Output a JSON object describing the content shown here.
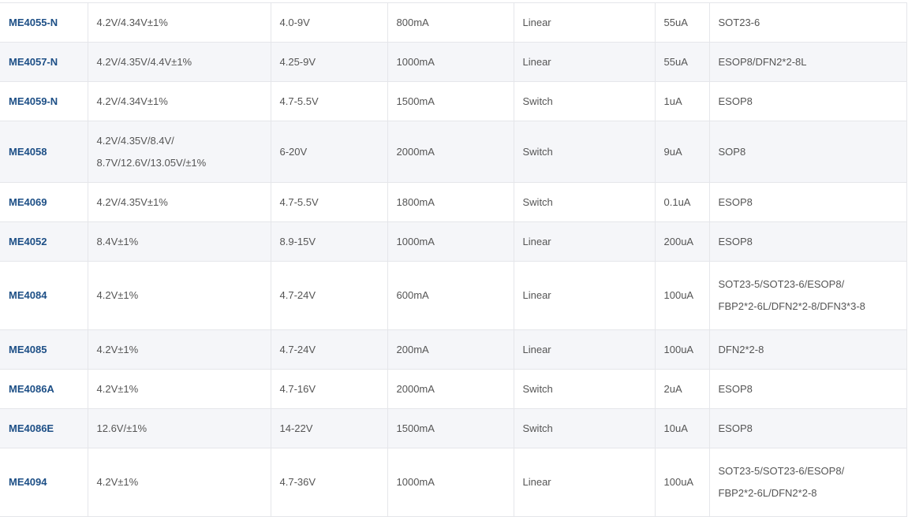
{
  "accent_color": "#1d4f86",
  "rows": [
    {
      "model": "ME4055-N",
      "voltage": [
        "4.2V/4.34V±1%"
      ],
      "input": "4.0-9V",
      "current": "800mA",
      "type": "Linear",
      "quiescent": "55uA",
      "package": [
        "SOT23-6"
      ]
    },
    {
      "model": "ME4057-N",
      "voltage": [
        "4.2V/4.35V/4.4V±1%"
      ],
      "input": "4.25-9V",
      "current": "1000mA",
      "type": "Linear",
      "quiescent": "55uA",
      "package": [
        "ESOP8/DFN2*2-8L"
      ]
    },
    {
      "model": "ME4059-N",
      "voltage": [
        "4.2V/4.34V±1%"
      ],
      "input": "4.7-5.5V",
      "current": "1500mA",
      "type": "Switch",
      "quiescent": "1uA",
      "package": [
        "ESOP8"
      ]
    },
    {
      "model": "ME4058",
      "voltage": [
        "4.2V/4.35V/8.4V/",
        "8.7V/12.6V/13.05V/±1%"
      ],
      "input": "6-20V",
      "current": "2000mA",
      "type": "Switch",
      "quiescent": "9uA",
      "package": [
        "SOP8"
      ]
    },
    {
      "model": "ME4069",
      "voltage": [
        "4.2V/4.35V±1%"
      ],
      "input": "4.7-5.5V",
      "current": "1800mA",
      "type": "Switch",
      "quiescent": "0.1uA",
      "package": [
        "ESOP8"
      ]
    },
    {
      "model": "ME4052",
      "voltage": [
        "8.4V±1%"
      ],
      "input": "8.9-15V",
      "current": "1000mA",
      "type": "Linear",
      "quiescent": "200uA",
      "package": [
        "ESOP8"
      ]
    },
    {
      "model": "ME4084",
      "voltage": [
        "4.2V±1%"
      ],
      "input": "4.7-24V",
      "current": "600mA",
      "type": "Linear",
      "quiescent": "100uA",
      "package": [
        "SOT23-5/SOT23-6/ESOP8/",
        "FBP2*2-6L/DFN2*2-8/DFN3*3-8"
      ]
    },
    {
      "model": "ME4085",
      "voltage": [
        "4.2V±1%"
      ],
      "input": "4.7-24V",
      "current": "200mA",
      "type": "Linear",
      "quiescent": "100uA",
      "package": [
        "DFN2*2-8"
      ]
    },
    {
      "model": "ME4086A",
      "voltage": [
        "4.2V±1%"
      ],
      "input": "4.7-16V",
      "current": "2000mA",
      "type": "Switch",
      "quiescent": "2uA",
      "package": [
        "ESOP8"
      ]
    },
    {
      "model": "ME4086E",
      "voltage": [
        "12.6V/±1%"
      ],
      "input": "14-22V",
      "current": "1500mA",
      "type": "Switch",
      "quiescent": "10uA",
      "package": [
        "ESOP8"
      ]
    },
    {
      "model": "ME4094",
      "voltage": [
        "4.2V±1%"
      ],
      "input": "4.7-36V",
      "current": "1000mA",
      "type": "Linear",
      "quiescent": "100uA",
      "package": [
        "SOT23-5/SOT23-6/ESOP8/",
        "FBP2*2-6L/DFN2*2-8"
      ]
    }
  ]
}
